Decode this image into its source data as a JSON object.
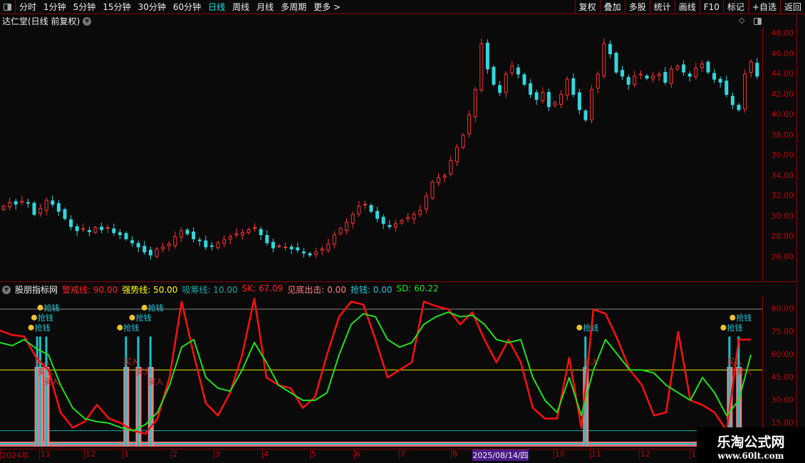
{
  "toolbar": {
    "periods": [
      "分时",
      "1分钟",
      "5分钟",
      "15分钟",
      "30分钟",
      "60分钟",
      "日线",
      "周线",
      "月线",
      "多周期",
      "更多 >"
    ],
    "active_period": "日线",
    "right_buttons": [
      "复权",
      "叠加",
      "多股",
      "统计",
      "画线",
      "F10",
      "标记",
      "+自选",
      "返回"
    ]
  },
  "chart_title": "达仁堂(日线 前复权)",
  "price_axis": [
    "48.00",
    "46.00",
    "44.00",
    "42.00",
    "40.00",
    "38.00",
    "36.00",
    "34.00",
    "32.00",
    "30.00",
    "28.00",
    "26.00"
  ],
  "indicator": {
    "name": "股朋指标网",
    "items": [
      {
        "label": "警戒线: 90.00",
        "color": "#ff2020"
      },
      {
        "label": "强势线: 50.00",
        "color": "#ffff00"
      },
      {
        "label": "吸筹线: 10.00",
        "color": "#1aa8a8"
      },
      {
        "label": "SK: 67.09",
        "color": "#ff2020"
      },
      {
        "label": "见底出击: 0.00",
        "color": "#ff8080"
      },
      {
        "label": "抢钱: 0.00",
        "color": "#20c8d8"
      },
      {
        "label": "SD: 60.22",
        "color": "#20e020"
      }
    ],
    "signal_labels": {
      "grab": "抢钱",
      "buy": "买入"
    }
  },
  "osc_axis": [
    "90.00",
    "75.00",
    "60.00",
    "45.00",
    "30.00",
    "15.00"
  ],
  "date_axis": [
    {
      "t": "2024年",
      "x": 0
    },
    {
      "t": "11",
      "x": 55
    },
    {
      "t": "12",
      "x": 118
    },
    {
      "t": "1",
      "x": 172
    },
    {
      "t": "2",
      "x": 240
    },
    {
      "t": "3",
      "x": 300
    },
    {
      "t": "4",
      "x": 368
    },
    {
      "t": "5",
      "x": 435
    },
    {
      "t": "6",
      "x": 497
    },
    {
      "t": "7",
      "x": 560
    },
    {
      "t": "8",
      "x": 633
    },
    {
      "t": "10",
      "x": 777
    },
    {
      "t": "11",
      "x": 828
    },
    {
      "t": "12",
      "x": 897
    },
    {
      "t": "1",
      "x": 968
    }
  ],
  "selected_date": "2025/08/14/四",
  "watermark": {
    "title": "乐淘公式网",
    "url": "www.60lt.com"
  },
  "colors": {
    "up": "#ff3232",
    "down": "#33d6dc",
    "sk": "#ff1010",
    "sd": "#20e020"
  },
  "chart_data": [
    {
      "type": "candlestick",
      "ylim": [
        25,
        49
      ],
      "close": [
        31.0,
        31.4,
        31.2,
        31.5,
        31.3,
        30.2,
        30.8,
        31.6,
        31.2,
        30.5,
        29.8,
        29.0,
        28.6,
        28.8,
        28.5,
        28.9,
        28.7,
        28.9,
        28.4,
        28.2,
        27.8,
        27.4,
        27.0,
        26.5,
        26.2,
        26.8,
        27.0,
        27.3,
        28.0,
        28.6,
        28.3,
        27.8,
        27.6,
        27.0,
        27.1,
        27.4,
        27.7,
        28.0,
        28.3,
        28.4,
        28.7,
        28.9,
        28.2,
        27.4,
        26.9,
        27.1,
        27.0,
        26.8,
        26.7,
        26.4,
        26.2,
        26.5,
        26.8,
        27.3,
        28.2,
        28.8,
        29.4,
        30.2,
        31.0,
        31.2,
        30.5,
        29.8,
        29.3,
        29.0,
        29.3,
        29.6,
        29.9,
        30.2,
        30.6,
        32.0,
        33.4,
        33.8,
        34.0,
        35.5,
        36.8,
        38.0,
        40.0,
        42.5,
        47.0,
        44.5,
        43.0,
        42.2,
        44.0,
        44.8,
        44.0,
        43.0,
        42.0,
        41.5,
        42.2,
        40.8,
        41.2,
        42.0,
        43.5,
        42.0,
        40.5,
        39.5,
        42.5,
        44.0,
        47.0,
        46.0,
        44.2,
        43.8,
        43.0,
        43.8,
        44.0,
        43.6,
        43.8,
        44.0,
        43.2,
        44.5,
        44.8,
        44.2,
        43.8,
        44.6,
        45.0,
        44.2,
        43.5,
        43.2,
        42.0,
        41.0,
        40.5,
        44.0,
        45.2,
        43.8
      ]
    },
    {
      "type": "line",
      "ylim": [
        0,
        100
      ],
      "hlines": {
        "警戒线": 90,
        "强势线": 50,
        "吸筹线": 10
      },
      "series": [
        {
          "name": "SK",
          "values": [
            76,
            73,
            72,
            58,
            50,
            22,
            12,
            16,
            27,
            18,
            15,
            10,
            8,
            18,
            45,
            95,
            60,
            28,
            20,
            35,
            60,
            97,
            45,
            40,
            38,
            25,
            32,
            60,
            85,
            95,
            93,
            70,
            45,
            50,
            55,
            95,
            92,
            90,
            80,
            88,
            70,
            55,
            70,
            55,
            25,
            18,
            18,
            58,
            12,
            90,
            87,
            70,
            50,
            40,
            20,
            22,
            75,
            30,
            27,
            22,
            10,
            70,
            70
          ]
        },
        {
          "name": "SD",
          "values": [
            68,
            66,
            70,
            64,
            60,
            40,
            25,
            18,
            16,
            15,
            12,
            10,
            14,
            22,
            40,
            65,
            70,
            45,
            38,
            36,
            50,
            68,
            55,
            40,
            35,
            30,
            30,
            35,
            60,
            80,
            87,
            85,
            70,
            65,
            68,
            80,
            85,
            88,
            85,
            86,
            80,
            70,
            68,
            70,
            45,
            30,
            22,
            45,
            20,
            50,
            70,
            60,
            50,
            50,
            48,
            40,
            35,
            30,
            45,
            35,
            20,
            30,
            60
          ]
        }
      ],
      "signals": [
        {
          "i": 12,
          "grab": true,
          "buy": true
        },
        {
          "i": 13,
          "grab": true,
          "buy": true
        },
        {
          "i": 15,
          "grab": true,
          "buy": true
        },
        {
          "i": 41,
          "grab": true,
          "buy": true
        },
        {
          "i": 45,
          "grab": true,
          "buy": true
        },
        {
          "i": 49,
          "grab": true,
          "buy": true
        },
        {
          "i": 191,
          "grab": true,
          "buy": true
        },
        {
          "i": 238,
          "grab": true,
          "buy": true
        },
        {
          "i": 241,
          "grab": true,
          "buy": true
        }
      ]
    }
  ]
}
